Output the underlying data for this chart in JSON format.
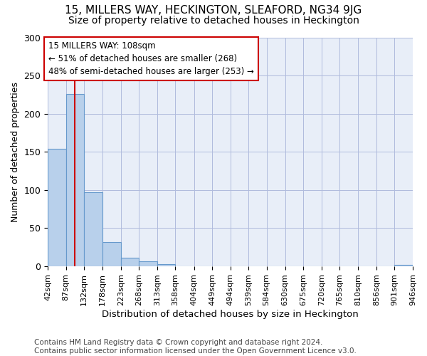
{
  "title": "15, MILLERS WAY, HECKINGTON, SLEAFORD, NG34 9JG",
  "subtitle": "Size of property relative to detached houses in Heckington",
  "xlabel": "Distribution of detached houses by size in Heckington",
  "ylabel": "Number of detached properties",
  "bar_color": "#b8d0eb",
  "bar_edge_color": "#6699cc",
  "vline_color": "#cc0000",
  "vline_x": 108,
  "annotation_text": "15 MILLERS WAY: 108sqm\n← 51% of detached houses are smaller (268)\n48% of semi-detached houses are larger (253) →",
  "annotation_box_color": "#ffffff",
  "annotation_box_edge": "#cc0000",
  "bin_edges": [
    42,
    87,
    132,
    178,
    223,
    268,
    313,
    358,
    404,
    449,
    494,
    539,
    584,
    630,
    675,
    720,
    765,
    810,
    856,
    901,
    946
  ],
  "bar_heights": [
    154,
    226,
    97,
    32,
    11,
    7,
    3,
    0,
    0,
    0,
    0,
    0,
    0,
    0,
    0,
    0,
    0,
    0,
    0,
    2
  ],
  "ylim": [
    0,
    300
  ],
  "yticks": [
    0,
    50,
    100,
    150,
    200,
    250,
    300
  ],
  "footer": "Contains HM Land Registry data © Crown copyright and database right 2024.\nContains public sector information licensed under the Open Government Licence v3.0.",
  "footer_fontsize": 7.5,
  "title_fontsize": 11,
  "subtitle_fontsize": 10,
  "xlabel_fontsize": 9.5,
  "ylabel_fontsize": 9,
  "tick_fontsize": 8,
  "background_color": "#e8eef8"
}
